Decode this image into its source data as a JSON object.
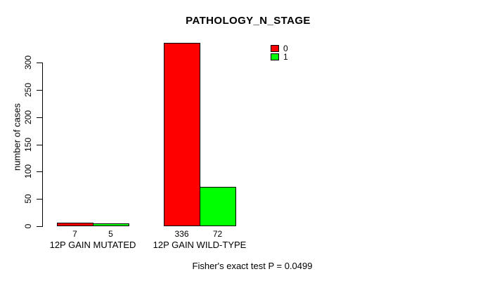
{
  "chart_data": {
    "type": "bar",
    "title": "PATHOLOGY_N_STAGE",
    "ylabel": "number of cases",
    "xlabel": "",
    "categories": [
      "12P GAIN MUTATED",
      "12P GAIN WILD-TYPE"
    ],
    "series": [
      {
        "name": "0",
        "color": "#ff0000",
        "values": [
          7,
          336
        ]
      },
      {
        "name": "1",
        "color": "#00ff00",
        "values": [
          5,
          72
        ]
      }
    ],
    "yticks": [
      0,
      50,
      100,
      150,
      200,
      250,
      300
    ],
    "ylim": [
      0,
      336
    ],
    "grid": false,
    "legend_position": "top-right",
    "bar_border_color": "#000000",
    "axis_color": "#000000",
    "background_color": "#ffffff",
    "annotation": "Fisher's exact test P = 0.0499"
  }
}
